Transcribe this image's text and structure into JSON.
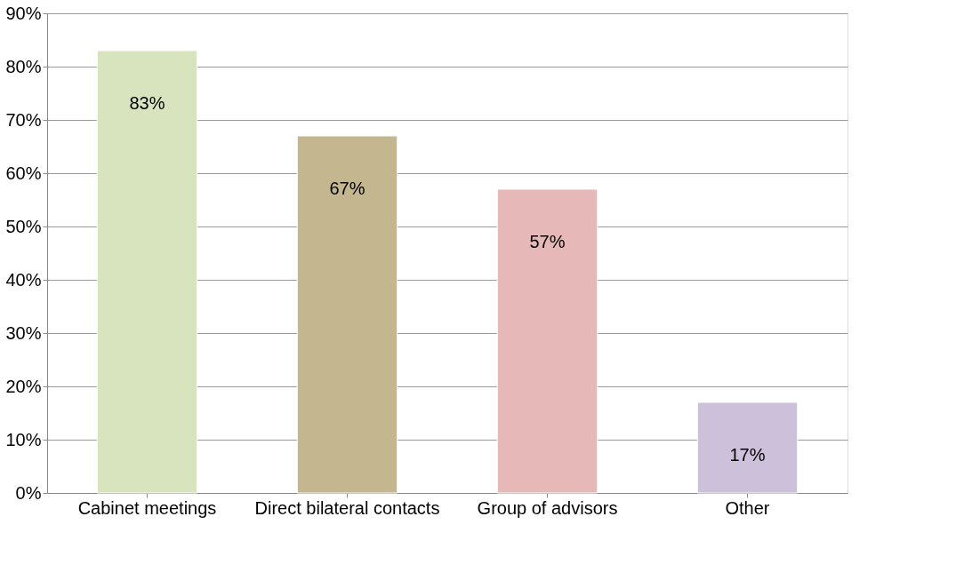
{
  "chart_data": {
    "type": "bar",
    "categories": [
      "Cabinet meetings",
      "Direct bilateral contacts",
      "Group of advisors",
      "Other"
    ],
    "values": [
      83,
      67,
      57,
      17
    ],
    "colors": [
      "#d7e4bd",
      "#c4b68e",
      "#e6b9b8",
      "#ccc0da"
    ],
    "value_labels": [
      "83%",
      "67%",
      "57%",
      "17%"
    ],
    "ylim": [
      0,
      90
    ],
    "yticks": [
      {
        "value": 0,
        "label": "0%"
      },
      {
        "value": 10,
        "label": "10%"
      },
      {
        "value": 20,
        "label": "20%"
      },
      {
        "value": 30,
        "label": "30%"
      },
      {
        "value": 40,
        "label": "40%"
      },
      {
        "value": 50,
        "label": "50%"
      },
      {
        "value": 60,
        "label": "60%"
      },
      {
        "value": 70,
        "label": "70%"
      },
      {
        "value": 80,
        "label": "80%"
      },
      {
        "value": 90,
        "label": "90%"
      }
    ],
    "grid": true
  }
}
